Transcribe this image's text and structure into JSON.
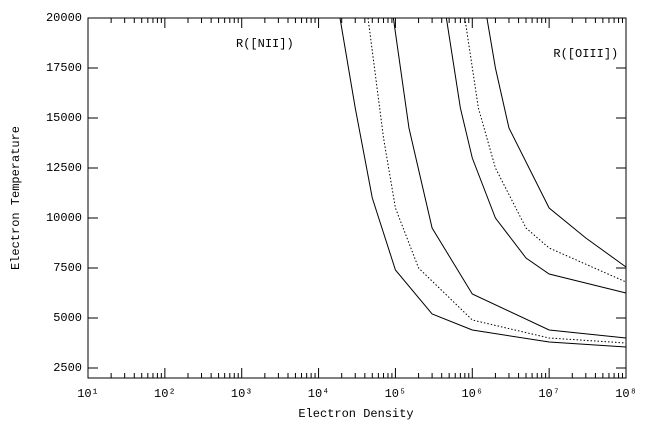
{
  "chart_data": {
    "type": "line",
    "xlabel": "Electron Density",
    "ylabel": "Electron Temperature",
    "xscale": "log",
    "xminor": true,
    "xlim": [
      10,
      100000000
    ],
    "ylim": [
      2000,
      20000
    ],
    "xticks": [
      {
        "value": 10,
        "label": "10¹"
      },
      {
        "value": 100,
        "label": "10²"
      },
      {
        "value": 1000,
        "label": "10³"
      },
      {
        "value": 10000,
        "label": "10⁴"
      },
      {
        "value": 100000,
        "label": "10⁵"
      },
      {
        "value": 1000000,
        "label": "10⁶"
      },
      {
        "value": 10000000,
        "label": "10⁷"
      },
      {
        "value": 100000000,
        "label": "10⁸"
      }
    ],
    "yticks": [
      2500,
      5000,
      7500,
      10000,
      12500,
      15000,
      17500,
      20000
    ],
    "annotations": [
      {
        "text": "R([NII])",
        "x": 2000,
        "y": 18700
      },
      {
        "text": "R([OIII])",
        "x": 30000000,
        "y": 18200
      }
    ],
    "series": [
      {
        "color": "#000000",
        "dash": "solid",
        "x": [
          19000,
          30000,
          50000,
          100000,
          300000,
          1000000,
          10000000,
          100000000
        ],
        "values": [
          20000,
          15500,
          11000,
          7400,
          5200,
          4400,
          3800,
          3550
        ]
      },
      {
        "color": "#000000",
        "dash": "dotted",
        "x": [
          44000,
          70000,
          100000,
          200000,
          1000000,
          10000000,
          100000000
        ],
        "values": [
          20000,
          14000,
          10500,
          7500,
          4900,
          4000,
          3750
        ]
      },
      {
        "color": "#000000",
        "dash": "solid",
        "x": [
          94000,
          150000,
          300000,
          1000000,
          10000000,
          100000000
        ],
        "values": [
          20000,
          14500,
          9500,
          6200,
          4400,
          4000
        ]
      },
      {
        "color": "#000000",
        "dash": "solid",
        "x": [
          460000,
          700000,
          1000000,
          2000000,
          5000000,
          10000000,
          100000000
        ],
        "values": [
          20000,
          15500,
          13000,
          10000,
          8000,
          7200,
          6250
        ]
      },
      {
        "color": "#000000",
        "dash": "dotted",
        "x": [
          800000,
          1200000,
          2000000,
          5000000,
          10000000,
          100000000
        ],
        "values": [
          20000,
          15500,
          12500,
          9500,
          8500,
          6800
        ]
      },
      {
        "color": "#000000",
        "dash": "solid",
        "x": [
          1550000,
          2000000,
          3000000,
          10000000,
          30000000,
          100000000
        ],
        "values": [
          20000,
          17500,
          14500,
          10500,
          9000,
          7550
        ]
      }
    ]
  }
}
